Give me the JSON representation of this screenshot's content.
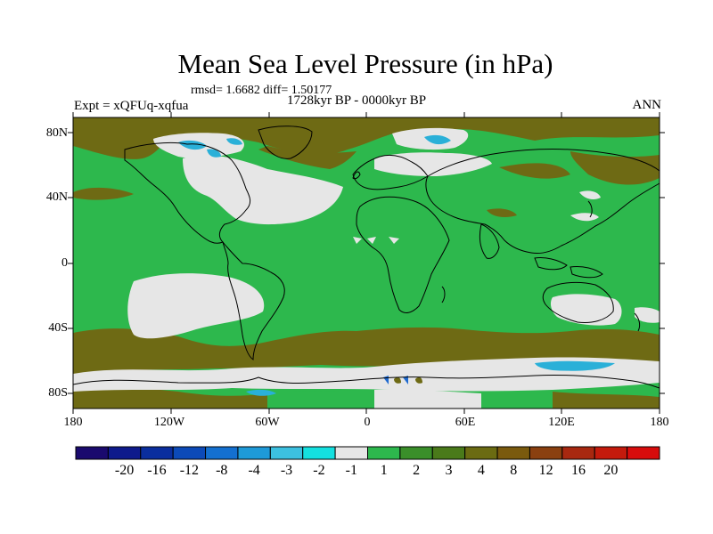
{
  "title": "Mean Sea Level Pressure (in hPa)",
  "stats": "rmsd= 1.6682 diff= 1.50177",
  "period": "1728kyr BP - 0000kyr BP",
  "experiment": "Expt = xQFUq-xqfua",
  "season": "ANN",
  "lat_labels": [
    "80N",
    "40N",
    "0",
    "40S",
    "80S"
  ],
  "lon_labels": [
    "180",
    "120W",
    "60W",
    "0",
    "60E",
    "120E",
    "180"
  ],
  "colorbar": {
    "colors": [
      "#1a0a6e",
      "#0e1a8c",
      "#0a2e9e",
      "#0c4ab8",
      "#1470d0",
      "#1e9ad8",
      "#3cc0e0",
      "#14e0e0",
      "#e6e6e6",
      "#2db84d",
      "#3a8f2a",
      "#4a7a1a",
      "#6b6b12",
      "#7a5a0e",
      "#8a4010",
      "#a82810",
      "#c41a0c",
      "#d80c0c"
    ],
    "labels": [
      "-20",
      "-16",
      "-12",
      "-8",
      "-4",
      "-3",
      "-2",
      "-1",
      "1",
      "2",
      "3",
      "4",
      "8",
      "12",
      "16",
      "20"
    ]
  },
  "palette": {
    "green": "#2db84d",
    "white": "#e6e6e6",
    "brown": "#6e5a14",
    "cyan": "#2ab0d8"
  }
}
